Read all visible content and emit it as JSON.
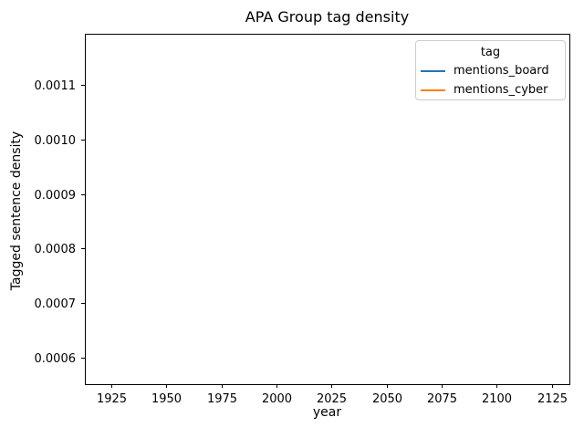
{
  "figure": {
    "title": "APA Group tag density",
    "xlabel": "year",
    "ylabel": "Tagged sentence density"
  },
  "legend": {
    "title": "tag",
    "entries": [
      {
        "label": "mentions_board",
        "color": "#1f77b4"
      },
      {
        "label": "mentions_cyber",
        "color": "#ff7f0e"
      }
    ]
  },
  "chart_data": {
    "type": "line",
    "title": "APA Group tag density",
    "xlabel": "year",
    "ylabel": "Tagged sentence density",
    "x_ticks": {
      "values": [
        1925,
        1950,
        1975,
        2000,
        2025,
        2050,
        2075,
        2100,
        2125
      ],
      "labels": [
        "1925",
        "1950",
        "1975",
        "2000",
        "2025",
        "2050",
        "2075",
        "2100",
        "2125"
      ]
    },
    "y_ticks": {
      "values": [
        0.0006,
        0.0007,
        0.0008,
        0.0009,
        0.001,
        0.0011
      ],
      "labels": [
        "0.0006",
        "0.0007",
        "0.0008",
        "0.0009",
        "0.0010",
        "0.0011"
      ]
    },
    "xlim": [
      1913,
      2133
    ],
    "ylim": [
      0.000552,
      0.001193
    ],
    "grid": false,
    "legend_title": "tag",
    "legend_position": "upper right",
    "series": [
      {
        "name": "mentions_board",
        "color": "#1f77b4",
        "x": [],
        "y": []
      },
      {
        "name": "mentions_cyber",
        "color": "#ff7f0e",
        "x": [],
        "y": []
      }
    ]
  },
  "style": {
    "axis_color": "#000000",
    "text_color": "#000000",
    "legend_border_color": "#cccccc",
    "background": "#ffffff"
  }
}
